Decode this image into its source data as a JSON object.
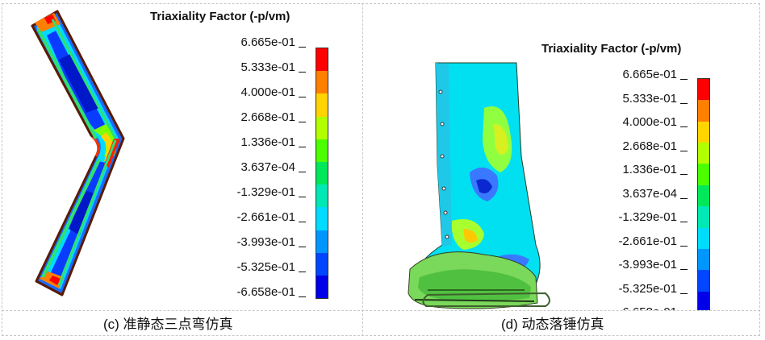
{
  "panel_c": {
    "legend_title": "Triaxiality Factor (-p/vm)",
    "caption": "(c)  准静态三点弯仿真"
  },
  "panel_d": {
    "legend_title": "Triaxiality Factor (-p/vm)",
    "caption": "(d)  动态落锤仿真"
  },
  "legend": {
    "ticks": [
      "6.665e-01",
      "5.333e-01",
      "4.000e-01",
      "2.668e-01",
      "1.336e-01",
      "3.637e-04",
      "-1.329e-01",
      "-2.661e-01",
      "-3.993e-01",
      "-5.325e-01",
      "-6.658e-01"
    ],
    "colors": [
      "#ff0000",
      "#ff7f00",
      "#ffd400",
      "#b2ff00",
      "#4cff00",
      "#00e85a",
      "#00e8b4",
      "#00dcff",
      "#0096ff",
      "#0046ff",
      "#0000e8"
    ]
  }
}
